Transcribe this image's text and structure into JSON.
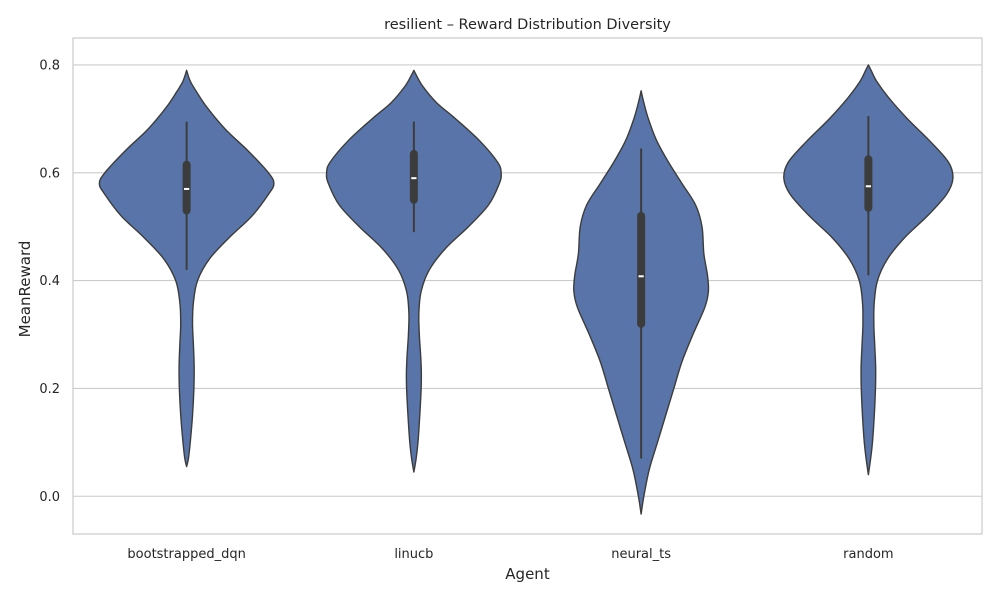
{
  "chart_data": {
    "type": "violin",
    "title": "resilient – Reward Distribution Diversity",
    "xlabel": "Agent",
    "ylabel": "MeanReward",
    "ylim": [
      -0.07,
      0.85
    ],
    "yticks": [
      0.0,
      0.2,
      0.4,
      0.6,
      0.8
    ],
    "ytick_labels": [
      "0.0",
      "0.2",
      "0.4",
      "0.6",
      "0.8"
    ],
    "grid": "horizontal",
    "colors": {
      "violin_fill": "#5874a8",
      "violin_edge": "#3c3c3c",
      "box": "#3c3c3c",
      "median": "#ffffff",
      "grid": "#cccccc",
      "axes": "#cccccc"
    },
    "categories": [
      "bootstrapped_dqn",
      "linucb",
      "neural_ts",
      "random"
    ],
    "violins": [
      {
        "category": "bootstrapped_dqn",
        "median": 0.57,
        "q1": 0.53,
        "q3": 0.615,
        "whisker_low": 0.42,
        "whisker_high": 0.695,
        "profile": [
          [
            0.055,
            0.0
          ],
          [
            0.07,
            0.02
          ],
          [
            0.1,
            0.04
          ],
          [
            0.15,
            0.065
          ],
          [
            0.2,
            0.08
          ],
          [
            0.24,
            0.083
          ],
          [
            0.28,
            0.075
          ],
          [
            0.32,
            0.065
          ],
          [
            0.36,
            0.075
          ],
          [
            0.4,
            0.12
          ],
          [
            0.44,
            0.25
          ],
          [
            0.48,
            0.47
          ],
          [
            0.52,
            0.72
          ],
          [
            0.56,
            0.9
          ],
          [
            0.58,
            0.96
          ],
          [
            0.6,
            0.9
          ],
          [
            0.64,
            0.68
          ],
          [
            0.68,
            0.43
          ],
          [
            0.72,
            0.23
          ],
          [
            0.75,
            0.11
          ],
          [
            0.77,
            0.04
          ],
          [
            0.79,
            0.0
          ]
        ]
      },
      {
        "category": "linucb",
        "median": 0.59,
        "q1": 0.55,
        "q3": 0.635,
        "whisker_low": 0.49,
        "whisker_high": 0.695,
        "profile": [
          [
            0.045,
            0.0
          ],
          [
            0.07,
            0.025
          ],
          [
            0.1,
            0.045
          ],
          [
            0.15,
            0.065
          ],
          [
            0.2,
            0.08
          ],
          [
            0.23,
            0.082
          ],
          [
            0.26,
            0.075
          ],
          [
            0.3,
            0.06
          ],
          [
            0.34,
            0.055
          ],
          [
            0.38,
            0.08
          ],
          [
            0.42,
            0.17
          ],
          [
            0.46,
            0.35
          ],
          [
            0.5,
            0.6
          ],
          [
            0.54,
            0.82
          ],
          [
            0.58,
            0.94
          ],
          [
            0.6,
            0.96
          ],
          [
            0.62,
            0.92
          ],
          [
            0.66,
            0.72
          ],
          [
            0.7,
            0.46
          ],
          [
            0.73,
            0.25
          ],
          [
            0.76,
            0.1
          ],
          [
            0.78,
            0.03
          ],
          [
            0.79,
            0.0
          ]
        ]
      },
      {
        "category": "neural_ts",
        "median": 0.408,
        "q1": 0.32,
        "q3": 0.52,
        "whisker_low": 0.07,
        "whisker_high": 0.645,
        "profile": [
          [
            -0.033,
            0.0
          ],
          [
            0.0,
            0.03
          ],
          [
            0.05,
            0.09
          ],
          [
            0.1,
            0.18
          ],
          [
            0.15,
            0.27
          ],
          [
            0.2,
            0.36
          ],
          [
            0.25,
            0.45
          ],
          [
            0.3,
            0.57
          ],
          [
            0.35,
            0.7
          ],
          [
            0.38,
            0.74
          ],
          [
            0.41,
            0.73
          ],
          [
            0.45,
            0.69
          ],
          [
            0.5,
            0.67
          ],
          [
            0.54,
            0.6
          ],
          [
            0.58,
            0.45
          ],
          [
            0.62,
            0.3
          ],
          [
            0.66,
            0.17
          ],
          [
            0.7,
            0.08
          ],
          [
            0.73,
            0.03
          ],
          [
            0.752,
            0.0
          ]
        ]
      },
      {
        "category": "random",
        "median": 0.575,
        "q1": 0.535,
        "q3": 0.625,
        "whisker_low": 0.41,
        "whisker_high": 0.705,
        "profile": [
          [
            0.04,
            0.0
          ],
          [
            0.07,
            0.025
          ],
          [
            0.1,
            0.045
          ],
          [
            0.15,
            0.065
          ],
          [
            0.2,
            0.078
          ],
          [
            0.24,
            0.08
          ],
          [
            0.28,
            0.07
          ],
          [
            0.32,
            0.06
          ],
          [
            0.36,
            0.065
          ],
          [
            0.4,
            0.1
          ],
          [
            0.44,
            0.21
          ],
          [
            0.48,
            0.4
          ],
          [
            0.52,
            0.65
          ],
          [
            0.56,
            0.86
          ],
          [
            0.59,
            0.93
          ],
          [
            0.62,
            0.88
          ],
          [
            0.66,
            0.67
          ],
          [
            0.7,
            0.43
          ],
          [
            0.74,
            0.22
          ],
          [
            0.77,
            0.09
          ],
          [
            0.79,
            0.03
          ],
          [
            0.8,
            0.0
          ]
        ]
      }
    ]
  }
}
